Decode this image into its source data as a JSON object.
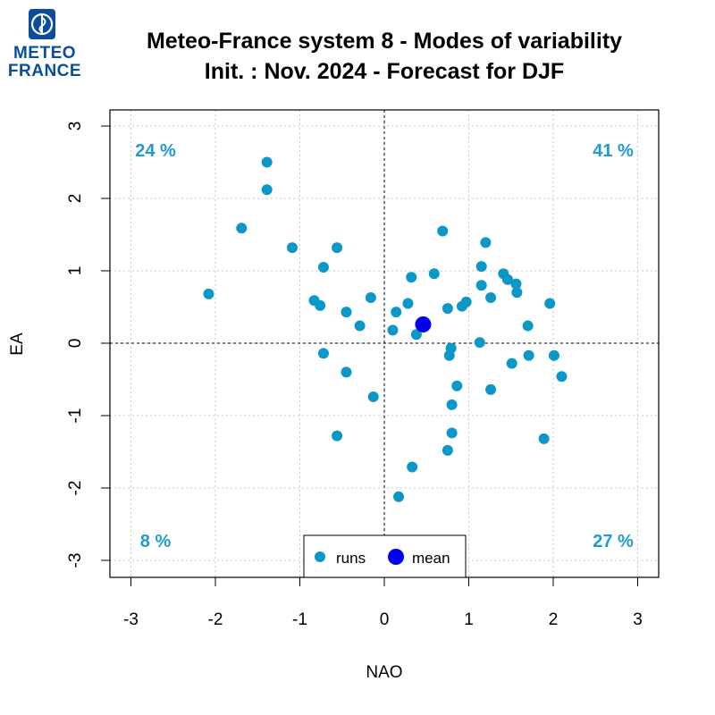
{
  "logo": {
    "line1": "METEO",
    "line2": "FRANCE",
    "color": "#0b4d9c"
  },
  "chart_data": {
    "type": "scatter",
    "title": "Meteo-France system 8 - Modes of variability",
    "subtitle": "Init. : Nov. 2024 - Forecast for DJF",
    "xlabel": "NAO",
    "ylabel": "EA",
    "xlim": [
      -3,
      3
    ],
    "ylim": [
      -3,
      3
    ],
    "xticks": [
      "-3",
      "-2",
      "-1",
      "0",
      "1",
      "2",
      "3"
    ],
    "yticks": [
      "-3",
      "-2",
      "-1",
      "0",
      "1",
      "2",
      "3"
    ],
    "grid": true,
    "legend_position": "bottom-center",
    "colors": {
      "runs": "#0b97c8",
      "mean": "#0000ee",
      "quadrant_text": "#1f9bd0"
    },
    "quadrants": {
      "top_left": "24 %",
      "top_right": "41 %",
      "bottom_left": "8 %",
      "bottom_right": "27 %"
    },
    "series": [
      {
        "name": "runs",
        "points": [
          [
            -2.08,
            0.68
          ],
          [
            -1.69,
            1.59
          ],
          [
            -1.39,
            2.5
          ],
          [
            -1.39,
            2.12
          ],
          [
            -1.09,
            1.32
          ],
          [
            -0.83,
            0.59
          ],
          [
            -0.76,
            0.52
          ],
          [
            -0.72,
            1.05
          ],
          [
            -0.72,
            -0.14
          ],
          [
            -0.56,
            1.32
          ],
          [
            -0.56,
            -1.28
          ],
          [
            -0.45,
            0.43
          ],
          [
            -0.45,
            -0.4
          ],
          [
            -0.29,
            0.24
          ],
          [
            -0.16,
            0.63
          ],
          [
            -0.13,
            -0.74
          ],
          [
            0.1,
            0.18
          ],
          [
            0.14,
            0.43
          ],
          [
            0.17,
            -2.12
          ],
          [
            0.28,
            0.55
          ],
          [
            0.32,
            0.91
          ],
          [
            0.33,
            -1.71
          ],
          [
            0.38,
            0.12
          ],
          [
            0.59,
            0.96
          ],
          [
            0.69,
            1.55
          ],
          [
            0.75,
            0.48
          ],
          [
            0.75,
            -1.48
          ],
          [
            0.77,
            -0.17
          ],
          [
            0.79,
            -0.07
          ],
          [
            0.8,
            -0.85
          ],
          [
            0.8,
            -1.24
          ],
          [
            0.86,
            -0.59
          ],
          [
            0.92,
            0.51
          ],
          [
            0.97,
            0.57
          ],
          [
            1.13,
            0.01
          ],
          [
            1.15,
            1.06
          ],
          [
            1.15,
            0.8
          ],
          [
            1.2,
            1.39
          ],
          [
            1.26,
            0.63
          ],
          [
            1.26,
            -0.64
          ],
          [
            1.41,
            0.96
          ],
          [
            1.46,
            0.88
          ],
          [
            1.51,
            -0.28
          ],
          [
            1.56,
            0.82
          ],
          [
            1.57,
            0.7
          ],
          [
            1.7,
            0.24
          ],
          [
            1.71,
            -0.17
          ],
          [
            1.89,
            -1.32
          ],
          [
            1.96,
            0.55
          ],
          [
            2.01,
            -0.17
          ],
          [
            2.1,
            -0.46
          ]
        ]
      },
      {
        "name": "mean",
        "points": [
          [
            0.46,
            0.26
          ]
        ]
      }
    ]
  }
}
